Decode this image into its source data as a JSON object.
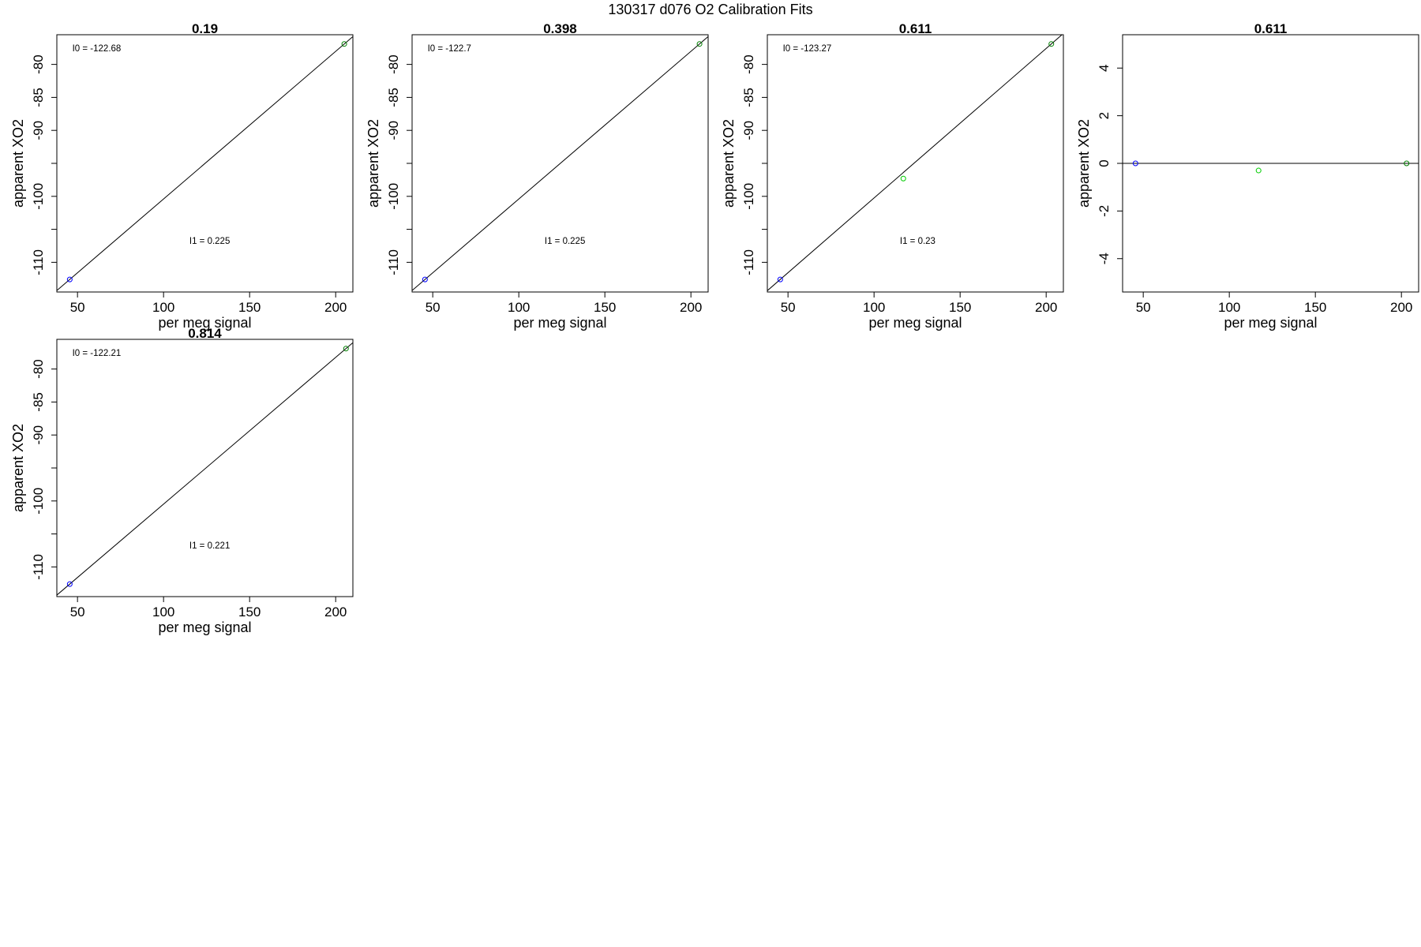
{
  "title": "130317   d076   O2 Calibration Fits",
  "chart_data": [
    {
      "type": "scatter",
      "title": "0.19",
      "xlabel": "per meg signal",
      "ylabel": "apparent XO2",
      "xlim": [
        38,
        210
      ],
      "ylim": [
        -114.5,
        -75.5
      ],
      "xticks": [
        50,
        100,
        150,
        200
      ],
      "yticks": [
        -80,
        -85,
        -90,
        -100,
        -110
      ],
      "yticks_unlabeled": [
        -95,
        -105
      ],
      "points": [
        {
          "x": 45.5,
          "y": -112.6,
          "color": "#0000ff"
        },
        {
          "x": 205.0,
          "y": -76.9,
          "color": "#008000"
        }
      ],
      "fit_line": {
        "type": "identity",
        "color": "#000000"
      },
      "annotations": [
        {
          "text": "I0 =  -122.68",
          "x": 47,
          "y": -78.0
        },
        {
          "text": "I1 =  0.225",
          "x": 115,
          "y": -107.2
        }
      ]
    },
    {
      "type": "scatter",
      "title": "0.398",
      "xlabel": "per meg signal",
      "ylabel": "apparent XO2",
      "xlim": [
        38,
        210
      ],
      "ylim": [
        -114.5,
        -75.5
      ],
      "xticks": [
        50,
        100,
        150,
        200
      ],
      "yticks": [
        -80,
        -85,
        -90,
        -100,
        -110
      ],
      "yticks_unlabeled": [
        -95,
        -105
      ],
      "points": [
        {
          "x": 45.5,
          "y": -112.6,
          "color": "#0000ff"
        },
        {
          "x": 205.0,
          "y": -76.9,
          "color": "#008000"
        }
      ],
      "fit_line": {
        "type": "identity",
        "color": "#000000"
      },
      "annotations": [
        {
          "text": "I0 =  -122.7",
          "x": 47,
          "y": -78.0
        },
        {
          "text": "I1 =  0.225",
          "x": 115,
          "y": -107.2
        }
      ]
    },
    {
      "type": "scatter",
      "title": "0.611",
      "xlabel": "per meg signal",
      "ylabel": "apparent XO2",
      "xlim": [
        38,
        210
      ],
      "ylim": [
        -114.5,
        -75.5
      ],
      "xticks": [
        50,
        100,
        150,
        200
      ],
      "yticks": [
        -80,
        -85,
        -90,
        -100,
        -110
      ],
      "yticks_unlabeled": [
        -95,
        -105
      ],
      "points": [
        {
          "x": 45.5,
          "y": -112.6,
          "color": "#0000ff"
        },
        {
          "x": 117.0,
          "y": -97.3,
          "color": "#00cc00"
        },
        {
          "x": 203.0,
          "y": -76.9,
          "color": "#008000"
        }
      ],
      "fit_line": {
        "type": "identity",
        "color": "#000000"
      },
      "annotations": [
        {
          "text": "I0 =  -123.27",
          "x": 47,
          "y": -78.0
        },
        {
          "text": "I1 =  0.23",
          "x": 115,
          "y": -107.2
        }
      ]
    },
    {
      "type": "scatter",
      "title": "0.611",
      "xlabel": "per meg signal",
      "ylabel": "apparent XO2",
      "xlim": [
        38,
        210
      ],
      "ylim": [
        -5.4,
        5.4
      ],
      "xticks": [
        50,
        100,
        150,
        200
      ],
      "yticks": [
        4,
        2,
        0,
        -2,
        -4
      ],
      "points": [
        {
          "x": 45.5,
          "y": 0.0,
          "color": "#0000ff"
        },
        {
          "x": 117.0,
          "y": -0.3,
          "color": "#00cc00"
        },
        {
          "x": 203.0,
          "y": 0.0,
          "color": "#008000"
        }
      ],
      "fit_line": {
        "type": "hline",
        "y": 0,
        "color": "#000000"
      },
      "annotations": []
    },
    {
      "type": "scatter",
      "title": "0.814",
      "xlabel": "per meg signal",
      "ylabel": "apparent XO2",
      "xlim": [
        38,
        210
      ],
      "ylim": [
        -114.5,
        -75.5
      ],
      "xticks": [
        50,
        100,
        150,
        200
      ],
      "yticks": [
        -80,
        -85,
        -90,
        -100,
        -110
      ],
      "yticks_unlabeled": [
        -95,
        -105
      ],
      "points": [
        {
          "x": 45.5,
          "y": -112.6,
          "color": "#0000ff"
        },
        {
          "x": 206.0,
          "y": -76.9,
          "color": "#008000"
        }
      ],
      "fit_line": {
        "type": "identity",
        "color": "#000000"
      },
      "annotations": [
        {
          "text": "I0 =  -122.21",
          "x": 47,
          "y": -78.0
        },
        {
          "text": "I1 =  0.221",
          "x": 115,
          "y": -107.2
        }
      ]
    }
  ]
}
